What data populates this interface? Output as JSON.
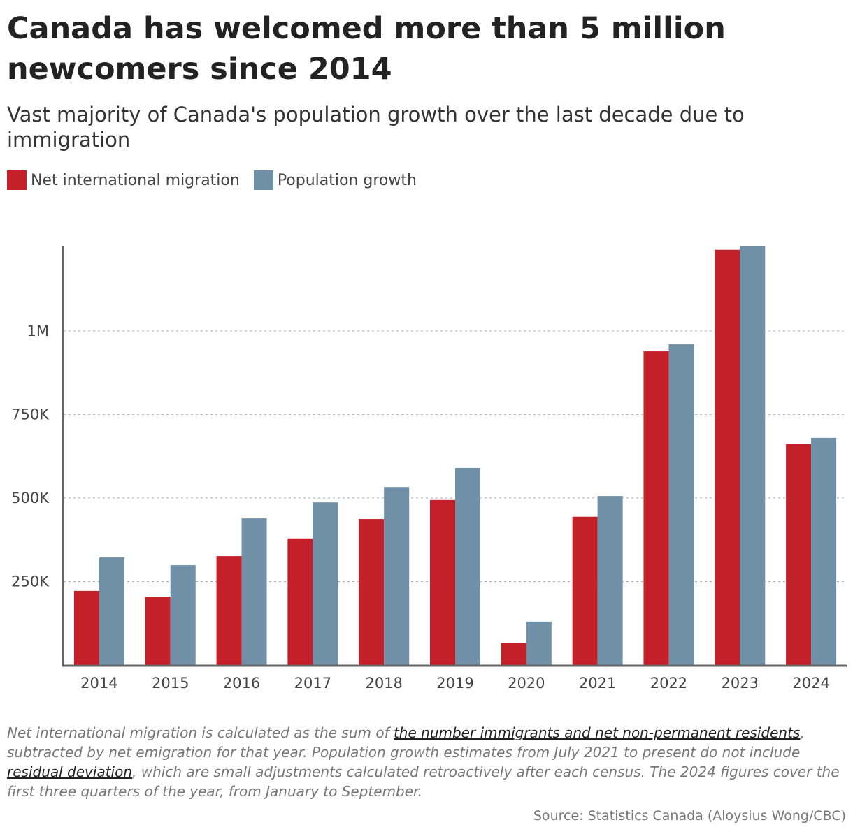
{
  "chart_data": {
    "type": "bar",
    "title": "Canada has welcomed more than 5 million newcomers since 2014",
    "subtitle": "Vast majority of Canada's population growth over the last decade due to immigration",
    "categories": [
      "2014",
      "2015",
      "2016",
      "2017",
      "2018",
      "2019",
      "2020",
      "2021",
      "2022",
      "2023",
      "2024"
    ],
    "series": [
      {
        "name": "Net international migration",
        "color": "#c4202a",
        "values": [
          222000,
          205000,
          326000,
          379000,
          437000,
          494000,
          67000,
          444000,
          939000,
          1243000,
          661000
        ]
      },
      {
        "name": "Population growth",
        "color": "#6f90a6",
        "values": [
          322000,
          299000,
          439000,
          487000,
          533000,
          590000,
          130000,
          506000,
          960000,
          1255000,
          680000
        ]
      }
    ],
    "ylim": [
      0,
      1255000
    ],
    "yticks": [
      {
        "value": 250000,
        "label": "250K"
      },
      {
        "value": 500000,
        "label": "500K"
      },
      {
        "value": 750000,
        "label": "750K"
      },
      {
        "value": 1000000,
        "label": "1M"
      }
    ],
    "grid": true,
    "note": [
      {
        "text": "Net international migration is calculated as the sum of ",
        "link": false
      },
      {
        "text": "the number immigrants and net non-permanent residents",
        "link": true
      },
      {
        "text": ", subtracted by net emigration for that year. Population growth estimates from July 2021 to present do not include ",
        "link": false
      },
      {
        "text": "residual deviation",
        "link": true
      },
      {
        "text": ", which are small adjustments calculated retroactively after each census. The 2024 figures cover the first three quarters of the year, from January to September.",
        "link": false
      }
    ],
    "source": "Source: Statistics Canada (Aloysius Wong/CBC)"
  }
}
